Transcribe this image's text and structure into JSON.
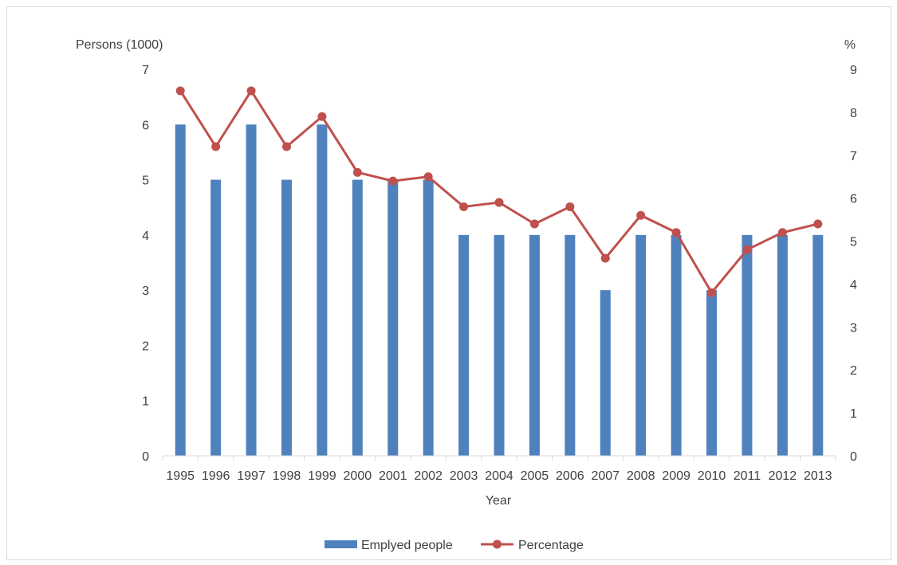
{
  "chart_data": {
    "type": "bar",
    "categories": [
      "1995",
      "1996",
      "1997",
      "1998",
      "1999",
      "2000",
      "2001",
      "2002",
      "2003",
      "2004",
      "2005",
      "2006",
      "2007",
      "2008",
      "2009",
      "2010",
      "2011",
      "2012",
      "2013"
    ],
    "series": [
      {
        "name": "Emplyed people",
        "type": "bar",
        "axis": "left",
        "color": "#4f81bd",
        "values": [
          6,
          5,
          6,
          5,
          6,
          5,
          5,
          5,
          4,
          4,
          4,
          4,
          3,
          4,
          4,
          3,
          4,
          4,
          4
        ]
      },
      {
        "name": "Percentage",
        "type": "line",
        "axis": "right",
        "color": "#c0504d",
        "values": [
          8.5,
          7.2,
          8.5,
          7.2,
          7.9,
          6.6,
          6.4,
          6.5,
          5.8,
          5.9,
          5.4,
          5.8,
          4.6,
          5.6,
          5.2,
          3.8,
          4.8,
          5.2,
          5.4
        ]
      }
    ],
    "xlabel": "Year",
    "ylabel_left": "Persons (1000)",
    "ylabel_right": "%",
    "ylim_left": [
      0,
      7
    ],
    "ylim_right": [
      0,
      9
    ],
    "yticks_left": [
      "0",
      "1",
      "2",
      "3",
      "4",
      "5",
      "6",
      "7"
    ],
    "yticks_right": [
      "0",
      "1",
      "2",
      "3",
      "4",
      "5",
      "6",
      "7",
      "8",
      "9"
    ],
    "grid": false,
    "legend": "bottom"
  }
}
